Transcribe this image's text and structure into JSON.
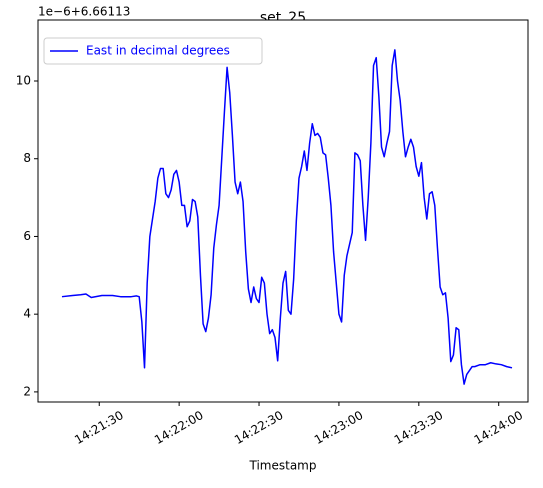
{
  "chart_data": {
    "type": "line",
    "title": "set_25",
    "offset_label": "1e−6+6.66113",
    "xlabel": "Timestamp",
    "legend": "upper left",
    "xlim": [
      "14:21:07",
      "14:24:11"
    ],
    "xticks": [
      "14:21:30",
      "14:22:00",
      "14:22:30",
      "14:23:00",
      "14:23:30",
      "14:24:00"
    ],
    "ylim": [
      1.74,
      11.57
    ],
    "yticks": [
      2,
      4,
      6,
      8,
      10
    ],
    "series": [
      {
        "name": "East in decimal degrees",
        "color": "#0000ff",
        "x": [
          "14:21:16",
          "14:21:20",
          "14:21:23",
          "14:21:25",
          "14:21:27",
          "14:21:31",
          "14:21:35",
          "14:21:38",
          "14:21:42",
          "14:21:44",
          "14:21:45",
          "14:21:46",
          "14:21:47",
          "14:21:48",
          "14:21:49",
          "14:21:51",
          "14:21:52",
          "14:21:53",
          "14:21:54",
          "14:21:55",
          "14:21:56",
          "14:21:57",
          "14:21:58",
          "14:21:59",
          "14:22:00",
          "14:22:01",
          "14:22:02",
          "14:22:03",
          "14:22:04",
          "14:22:05",
          "14:22:06",
          "14:22:07",
          "14:22:08",
          "14:22:09",
          "14:22:10",
          "14:22:11",
          "14:22:12",
          "14:22:13",
          "14:22:14",
          "14:22:15",
          "14:22:16",
          "14:22:17",
          "14:22:18",
          "14:22:19",
          "14:22:20",
          "14:22:21",
          "14:22:22",
          "14:22:23",
          "14:22:24",
          "14:22:25",
          "14:22:26",
          "14:22:27",
          "14:22:28",
          "14:22:29",
          "14:22:30",
          "14:22:31",
          "14:22:32",
          "14:22:33",
          "14:22:34",
          "14:22:35",
          "14:22:36",
          "14:22:37",
          "14:22:38",
          "14:22:39",
          "14:22:40",
          "14:22:41",
          "14:22:42",
          "14:22:43",
          "14:22:44",
          "14:22:45",
          "14:22:46",
          "14:22:47",
          "14:22:48",
          "14:22:49",
          "14:22:50",
          "14:22:51",
          "14:22:52",
          "14:22:53",
          "14:22:54",
          "14:22:55",
          "14:22:56",
          "14:22:57",
          "14:22:58",
          "14:22:59",
          "14:23:00",
          "14:23:01",
          "14:23:02",
          "14:23:03",
          "14:23:04",
          "14:23:05",
          "14:23:06",
          "14:23:07",
          "14:23:08",
          "14:23:09",
          "14:23:10",
          "14:23:11",
          "14:23:12",
          "14:23:13",
          "14:23:14",
          "14:23:15",
          "14:23:16",
          "14:23:17",
          "14:23:18",
          "14:23:19",
          "14:23:20",
          "14:23:21",
          "14:23:22",
          "14:23:23",
          "14:23:24",
          "14:23:25",
          "14:23:26",
          "14:23:27",
          "14:23:28",
          "14:23:29",
          "14:23:30",
          "14:23:31",
          "14:23:32",
          "14:23:33",
          "14:23:34",
          "14:23:35",
          "14:23:36",
          "14:23:37",
          "14:23:38",
          "14:23:39",
          "14:23:40",
          "14:23:41",
          "14:23:42",
          "14:23:43",
          "14:23:44",
          "14:23:45",
          "14:23:46",
          "14:23:47",
          "14:23:48",
          "14:23:50",
          "14:23:51",
          "14:23:53",
          "14:23:55",
          "14:23:57",
          "14:23:59",
          "14:24:01",
          "14:24:03",
          "14:24:05"
        ],
        "values": [
          4.45,
          4.48,
          4.5,
          4.52,
          4.43,
          4.48,
          4.48,
          4.45,
          4.45,
          4.47,
          4.45,
          3.8,
          2.62,
          4.8,
          6.0,
          6.9,
          7.5,
          7.75,
          7.75,
          7.1,
          7.0,
          7.2,
          7.6,
          7.7,
          7.4,
          6.8,
          6.8,
          6.25,
          6.4,
          6.95,
          6.9,
          6.5,
          5.0,
          3.75,
          3.55,
          3.9,
          4.5,
          5.7,
          6.3,
          6.8,
          8.0,
          9.2,
          10.35,
          9.7,
          8.6,
          7.4,
          7.1,
          7.4,
          6.9,
          5.6,
          4.65,
          4.3,
          4.7,
          4.4,
          4.3,
          4.95,
          4.8,
          4.0,
          3.5,
          3.6,
          3.4,
          2.8,
          3.9,
          4.8,
          5.1,
          4.1,
          4.0,
          4.9,
          6.4,
          7.5,
          7.8,
          8.2,
          7.7,
          8.4,
          8.9,
          8.6,
          8.65,
          8.55,
          8.15,
          8.1,
          7.5,
          6.8,
          5.6,
          4.8,
          4.0,
          3.8,
          5.0,
          5.5,
          5.8,
          6.1,
          8.15,
          8.1,
          7.95,
          6.8,
          5.9,
          7.0,
          8.4,
          10.4,
          10.6,
          9.6,
          8.3,
          8.05,
          8.4,
          8.7,
          10.4,
          10.8,
          10.0,
          9.5,
          8.7,
          8.05,
          8.3,
          8.5,
          8.3,
          7.8,
          7.55,
          7.9,
          7.0,
          6.45,
          7.1,
          7.15,
          6.8,
          5.7,
          4.7,
          4.5,
          4.55,
          3.9,
          2.78,
          2.95,
          3.65,
          3.6,
          2.7,
          2.2,
          2.45,
          2.65,
          2.65,
          2.7,
          2.7,
          2.75,
          2.72,
          2.7,
          2.65,
          2.62
        ]
      }
    ]
  }
}
